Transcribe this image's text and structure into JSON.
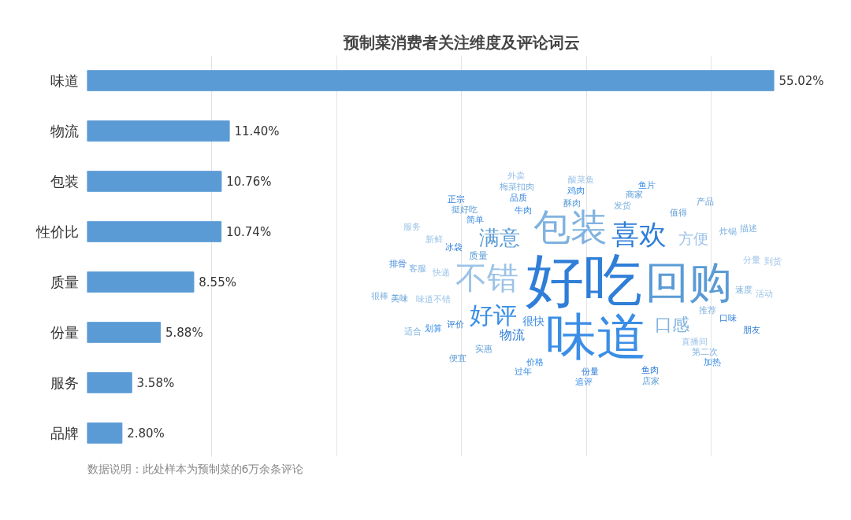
{
  "chart_data": {
    "type": "bar",
    "orientation": "horizontal",
    "title": "预制菜消费者关注维度及评论词云",
    "categories": [
      "味道",
      "物流",
      "包装",
      "性价比",
      "质量",
      "份量",
      "服务",
      "品牌"
    ],
    "values": [
      55.02,
      11.4,
      10.76,
      10.74,
      8.55,
      5.88,
      3.58,
      2.8
    ],
    "value_labels": [
      "55.02%",
      "11.40%",
      "10.76%",
      "10.74%",
      "8.55%",
      "5.88%",
      "3.58%",
      "2.80%"
    ],
    "color": "#5b9bd5",
    "grid": "x",
    "tick_labels": "y",
    "annotations": [
      "数据说明：此处样本为预制菜的6万余条评论",
      "好吃",
      "味道",
      "回购",
      "包装",
      "不错",
      "喜欢",
      "好评",
      "满意",
      "口感",
      "方便",
      "物流",
      "很快",
      "质量",
      "推荐",
      "快递",
      "冰袋",
      "牛肉",
      "酥肉",
      "发货",
      "味道不错",
      "评价",
      "简单",
      "值得",
      "速度",
      "直播间",
      "口味",
      "价格",
      "实惠",
      "客服",
      "新鲜",
      "品质",
      "鸡肉",
      "商家",
      "炸锅",
      "分量",
      "份量",
      "划算",
      "挺好吃",
      "第二次",
      "活动",
      "鱼肉",
      "过年",
      "美味",
      "梅菜扣肉",
      "酸菜鱼",
      "排骨",
      "鱼片",
      "产品",
      "描述",
      "到货",
      "朋友",
      "追评",
      "便宜",
      "适合",
      "服务",
      "正宗",
      "加热",
      "店家",
      "很棒",
      "外卖"
    ]
  }
}
